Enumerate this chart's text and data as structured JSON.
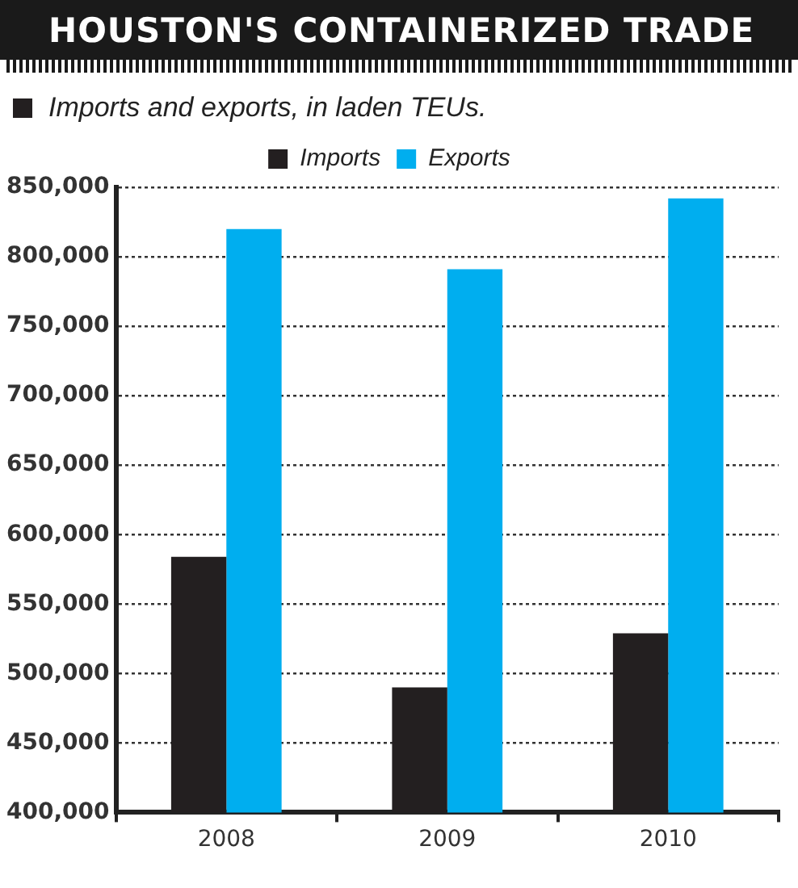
{
  "chart_data": {
    "type": "bar",
    "title": "HOUSTON'S CONTAINERIZED TRADE",
    "subtitle": "Imports and exports, in laden TEUs.",
    "categories": [
      "2008",
      "2009",
      "2010"
    ],
    "series": [
      {
        "name": "Imports",
        "color": "#231f20",
        "values": [
          584000,
          490000,
          529000
        ]
      },
      {
        "name": "Exports",
        "color": "#00aeef",
        "values": [
          820000,
          791000,
          842000
        ]
      }
    ],
    "ylim": [
      400000,
      850000
    ],
    "yticks": [
      {
        "value": 400000,
        "label": "400,000"
      },
      {
        "value": 450000,
        "label": "450,000"
      },
      {
        "value": 500000,
        "label": "500,000"
      },
      {
        "value": 550000,
        "label": "550,000"
      },
      {
        "value": 600000,
        "label": "600,000"
      },
      {
        "value": 650000,
        "label": "650,000"
      },
      {
        "value": 700000,
        "label": "700,000"
      },
      {
        "value": 750000,
        "label": "750,000"
      },
      {
        "value": 800000,
        "label": "800,000"
      },
      {
        "value": 850000,
        "label": "850,000"
      }
    ],
    "grid": "y",
    "legend": "top"
  }
}
